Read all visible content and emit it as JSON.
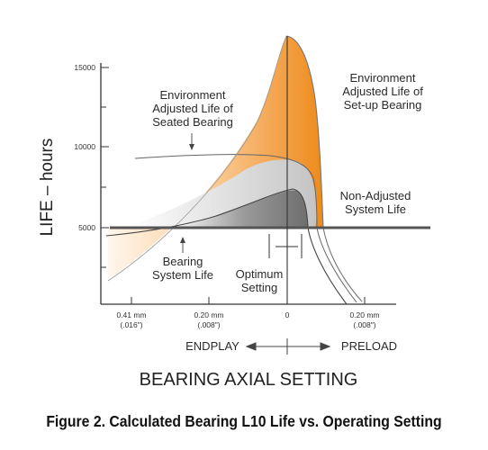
{
  "chart_data": {
    "type": "area",
    "ylabel": "LIFE – hours",
    "xlabel": "BEARING AXIAL SETTING",
    "y_ticks": [
      "15000",
      "10000",
      "5000"
    ],
    "x_ticks": [
      {
        "top": "0.41 mm",
        "bottom": "(.016\")"
      },
      {
        "top": "0.20 mm",
        "bottom": "(.008\")"
      },
      {
        "top": "0",
        "bottom": ""
      },
      {
        "top": "0.20 mm",
        "bottom": "(.008\")"
      }
    ],
    "direction_left": "ENDPLAY",
    "direction_right": "PRELOAD",
    "annotations": {
      "seated": [
        "Environment",
        "Adjusted Life of",
        "Seated Bearing"
      ],
      "setup": [
        "Environment",
        "Adjusted Life of",
        "Set-up Bearing"
      ],
      "nonadjusted": [
        "Non-Adjusted",
        "System Life"
      ],
      "bearing_system": [
        "Bearing",
        "System Life"
      ],
      "optimum": [
        "Optimum",
        "Setting"
      ]
    },
    "colors": {
      "setup_curve": "#f08c1e",
      "seated_curve": "#d4d4d4",
      "system_curve": "#8a8a8a",
      "nonadjusted_line": "#555555"
    },
    "non_adjusted_life": 5000,
    "x_unit": "mm (endplay negative, preload positive)",
    "series": [
      {
        "name": "Environment Adjusted Life of Set-up Bearing",
        "x": [
          -0.41,
          -0.3,
          -0.2,
          -0.1,
          -0.05,
          0,
          0.02,
          0.05,
          0.08,
          0.1
        ],
        "y": [
          1200,
          4200,
          7200,
          10800,
          12800,
          16200,
          15000,
          11500,
          6000,
          0
        ]
      },
      {
        "name": "Environment Adjusted Life of Seated Bearing",
        "x": [
          -0.45,
          -0.3,
          -0.2,
          -0.1,
          0,
          0.05,
          0.1,
          0.15,
          0.2,
          0.23
        ],
        "y": [
          8700,
          8600,
          8300,
          7800,
          7300,
          6800,
          5000,
          3000,
          500,
          -1500
        ]
      },
      {
        "name": "Bearing System Life",
        "x": [
          -0.45,
          -0.3,
          -0.2,
          -0.1,
          0,
          0.04,
          0.07,
          0.1,
          0.15,
          0.2
        ],
        "y": [
          4400,
          4800,
          5700,
          6600,
          7200,
          6900,
          4700,
          3300,
          1200,
          -1300
        ]
      }
    ]
  },
  "caption": "Figure 2. Calculated Bearing L10 Life vs. Operating Setting"
}
